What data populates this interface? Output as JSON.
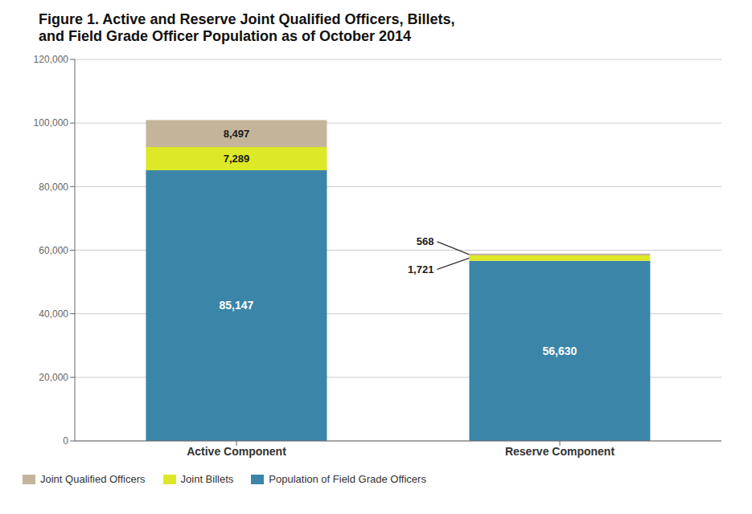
{
  "chart_data": {
    "type": "bar",
    "title": "Figure 1. Active and Reserve Joint Qualified Officers, Billets,\nand Field Grade Officer Population as of October 2014",
    "categories": [
      "Active Component",
      "Reserve Component"
    ],
    "series": [
      {
        "name": "Population of Field Grade Officers",
        "color": "#3a85a8",
        "values": [
          85147,
          56630
        ],
        "value_labels": [
          "85,147",
          "56,630"
        ]
      },
      {
        "name": "Joint Billets",
        "color": "#dde827",
        "values": [
          7289,
          1721
        ],
        "value_labels": [
          "7,289",
          "1,721"
        ]
      },
      {
        "name": "Joint Qualified Officers",
        "color": "#c4b59a",
        "values": [
          8497,
          568
        ],
        "value_labels": [
          "8,497",
          "568"
        ]
      }
    ],
    "stacked": true,
    "data_labels": true,
    "ylim": [
      0,
      120000
    ],
    "yticks": [
      0,
      {
        "value": 20000,
        "label": "20,000"
      },
      {
        "value": 40000,
        "label": "40,000"
      },
      {
        "value": 60000,
        "label": "60,000"
      },
      {
        "value": 80000,
        "label": "80,000"
      },
      {
        "value": 100000,
        "label": "100,000"
      },
      {
        "value": 120000,
        "label": "120,000"
      }
    ],
    "grid": true,
    "legend": "lower left"
  }
}
